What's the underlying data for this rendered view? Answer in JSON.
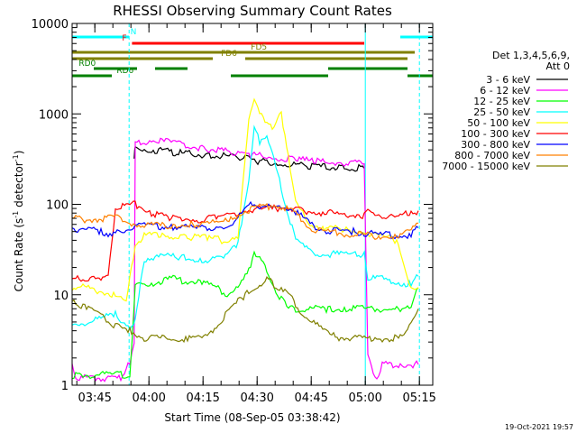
{
  "chart_data": {
    "type": "line",
    "title": "RHESSI Observing Summary Count Rates",
    "xlabel": "Start Time (08-Sep-05 03:38:42)",
    "ylabel_main": "Count Rate (s",
    "ylabel_sup1": "-1",
    "ylabel_mid": " detector",
    "ylabel_sup2": "-1",
    "ylabel_end": ")",
    "yscale": "log",
    "ylim": [
      1,
      10000
    ],
    "xlim_minutes": [
      0,
      100
    ],
    "x_ticks": [
      {
        "label": "03:45",
        "t": 6.3
      },
      {
        "label": "04:00",
        "t": 21.3
      },
      {
        "label": "04:15",
        "t": 36.3
      },
      {
        "label": "04:30",
        "t": 51.3
      },
      {
        "label": "04:45",
        "t": 66.3
      },
      {
        "label": "05:00",
        "t": 81.3
      },
      {
        "label": "05:15",
        "t": 96.3
      }
    ],
    "y_ticks": [
      {
        "label": "1",
        "v": 1
      },
      {
        "label": "10",
        "v": 10
      },
      {
        "label": "100",
        "v": 100
      },
      {
        "label": "1000",
        "v": 1000
      },
      {
        "label": "10000",
        "v": 10000
      }
    ],
    "legend_header_line1": "Det 1,3,4,5,6,9,",
    "legend_header_line2": "Att 0",
    "series": [
      {
        "name": "3 - 6 keV",
        "color": "#000000",
        "points": [
          [
            17.2,
            320
          ],
          [
            17.5,
            420
          ],
          [
            22,
            400
          ],
          [
            30,
            370
          ],
          [
            38,
            350
          ],
          [
            46,
            330
          ],
          [
            52,
            300
          ],
          [
            58,
            280
          ],
          [
            66,
            265
          ],
          [
            74,
            255
          ],
          [
            81,
            250
          ]
        ]
      },
      {
        "name": "6 - 12 keV",
        "color": "#ff00ff",
        "points": [
          [
            0,
            1.7
          ],
          [
            1,
            1.2
          ],
          [
            14,
            1.2
          ],
          [
            16,
            1.8
          ],
          [
            17.2,
            3
          ],
          [
            17.5,
            480
          ],
          [
            22,
            510
          ],
          [
            28,
            480
          ],
          [
            36,
            420
          ],
          [
            44,
            380
          ],
          [
            50,
            350
          ],
          [
            56,
            330
          ],
          [
            62,
            310
          ],
          [
            68,
            300
          ],
          [
            74,
            290
          ],
          [
            81,
            280
          ],
          [
            82,
            2
          ],
          [
            84.5,
            1.2
          ],
          [
            86,
            1.7
          ],
          [
            91,
            1.7
          ],
          [
            96,
            1.7
          ]
        ]
      },
      {
        "name": "12 - 25 keV",
        "color": "#00ff00",
        "points": [
          [
            0,
            1.3
          ],
          [
            1,
            1.3
          ],
          [
            5,
            1.3
          ],
          [
            10,
            1.3
          ],
          [
            13,
            1.3
          ],
          [
            16,
            1.3
          ],
          [
            17.5,
            12
          ],
          [
            20,
            13
          ],
          [
            24,
            14
          ],
          [
            28,
            15
          ],
          [
            32,
            14
          ],
          [
            36,
            14
          ],
          [
            40,
            12
          ],
          [
            43,
            10
          ],
          [
            46,
            12
          ],
          [
            49,
            18
          ],
          [
            50.5,
            30
          ],
          [
            52,
            26
          ],
          [
            54,
            18
          ],
          [
            57,
            10
          ],
          [
            60,
            7
          ],
          [
            63,
            7
          ],
          [
            67,
            7
          ],
          [
            71,
            7
          ],
          [
            76,
            7
          ],
          [
            81,
            7
          ],
          [
            86,
            7
          ],
          [
            91,
            7
          ],
          [
            94,
            7
          ],
          [
            96,
            12
          ]
        ]
      },
      {
        "name": "25 - 50 keV",
        "color": "#00ffff",
        "points": [
          [
            0,
            4.5
          ],
          [
            4,
            5
          ],
          [
            8,
            5.5
          ],
          [
            12,
            6
          ],
          [
            16,
            4.5
          ],
          [
            17.5,
            5
          ],
          [
            20,
            25
          ],
          [
            24,
            27
          ],
          [
            30,
            26
          ],
          [
            36,
            24
          ],
          [
            42,
            25
          ],
          [
            46,
            36
          ],
          [
            49,
            200
          ],
          [
            50.5,
            690
          ],
          [
            52,
            500
          ],
          [
            54,
            600
          ],
          [
            56,
            300
          ],
          [
            58,
            150
          ],
          [
            62,
            40
          ],
          [
            66,
            30
          ],
          [
            70,
            28
          ],
          [
            76,
            28
          ],
          [
            81,
            28
          ],
          [
            82,
            15
          ],
          [
            86,
            15
          ],
          [
            90,
            14
          ],
          [
            94,
            13
          ],
          [
            96,
            16
          ]
        ]
      },
      {
        "name": "50 - 100 keV",
        "color": "#ffff00",
        "points": [
          [
            0,
            12
          ],
          [
            4,
            12
          ],
          [
            8,
            11
          ],
          [
            12,
            10
          ],
          [
            15,
            8
          ],
          [
            17.5,
            36
          ],
          [
            20,
            45
          ],
          [
            25,
            46
          ],
          [
            32,
            44
          ],
          [
            38,
            42
          ],
          [
            42,
            40
          ],
          [
            46,
            45
          ],
          [
            48,
            300
          ],
          [
            49,
            900
          ],
          [
            50.5,
            1500
          ],
          [
            52,
            1000
          ],
          [
            54,
            850
          ],
          [
            56,
            700
          ],
          [
            58,
            1000
          ],
          [
            60,
            350
          ],
          [
            62,
            100
          ],
          [
            66,
            60
          ],
          [
            70,
            55
          ],
          [
            76,
            52
          ],
          [
            81,
            50
          ],
          [
            86,
            43
          ],
          [
            90,
            40
          ],
          [
            94,
            12
          ],
          [
            96,
            12
          ]
        ]
      },
      {
        "name": "100 - 300 keV",
        "color": "#ff0000",
        "points": [
          [
            0,
            15
          ],
          [
            2,
            15
          ],
          [
            8,
            15
          ],
          [
            10,
            15
          ],
          [
            12,
            90
          ],
          [
            15,
            95
          ],
          [
            17.5,
            100
          ],
          [
            22,
            80
          ],
          [
            28,
            70
          ],
          [
            34,
            68
          ],
          [
            40,
            70
          ],
          [
            44,
            75
          ],
          [
            48,
            85
          ],
          [
            52,
            88
          ],
          [
            56,
            90
          ],
          [
            60,
            92
          ],
          [
            62,
            86
          ],
          [
            66,
            84
          ],
          [
            70,
            80
          ],
          [
            74,
            78
          ],
          [
            78,
            78
          ],
          [
            81,
            75
          ],
          [
            82,
            85
          ],
          [
            86,
            75
          ],
          [
            90,
            72
          ],
          [
            94,
            80
          ],
          [
            96,
            85
          ]
        ]
      },
      {
        "name": "300 - 800 keV",
        "color": "#0000ff",
        "points": [
          [
            0,
            55
          ],
          [
            4,
            52
          ],
          [
            8,
            50
          ],
          [
            10,
            48
          ],
          [
            12,
            48
          ],
          [
            14,
            50
          ],
          [
            17.5,
            60
          ],
          [
            22,
            58
          ],
          [
            28,
            56
          ],
          [
            34,
            54
          ],
          [
            40,
            55
          ],
          [
            44,
            60
          ],
          [
            48,
            85
          ],
          [
            50,
            105
          ],
          [
            52,
            95
          ],
          [
            56,
            90
          ],
          [
            60,
            92
          ],
          [
            62,
            82
          ],
          [
            66,
            60
          ],
          [
            70,
            52
          ],
          [
            74,
            50
          ],
          [
            78,
            50
          ],
          [
            81,
            48
          ],
          [
            86,
            46
          ],
          [
            90,
            45
          ],
          [
            94,
            45
          ],
          [
            96,
            55
          ]
        ]
      },
      {
        "name": "800 - 7000 keV",
        "color": "#ff8000",
        "points": [
          [
            0,
            70
          ],
          [
            4,
            68
          ],
          [
            8,
            70
          ],
          [
            12,
            72
          ],
          [
            17.5,
            60
          ],
          [
            22,
            58
          ],
          [
            28,
            58
          ],
          [
            34,
            60
          ],
          [
            40,
            62
          ],
          [
            44,
            68
          ],
          [
            48,
            85
          ],
          [
            52,
            92
          ],
          [
            56,
            98
          ],
          [
            60,
            92
          ],
          [
            62,
            80
          ],
          [
            66,
            55
          ],
          [
            70,
            50
          ],
          [
            74,
            48
          ],
          [
            78,
            46
          ],
          [
            81,
            46
          ],
          [
            86,
            44
          ],
          [
            90,
            44
          ],
          [
            94,
            50
          ],
          [
            96,
            62
          ]
        ]
      },
      {
        "name": "7000 - 15000 keV",
        "color": "#808000",
        "points": [
          [
            0,
            9
          ],
          [
            4,
            7
          ],
          [
            8,
            6
          ],
          [
            10,
            5
          ],
          [
            12,
            4.5
          ],
          [
            16,
            4
          ],
          [
            20,
            3.3
          ],
          [
            24,
            3.3
          ],
          [
            28,
            3.3
          ],
          [
            32,
            3.3
          ],
          [
            36,
            3.3
          ],
          [
            40,
            4.5
          ],
          [
            44,
            7
          ],
          [
            48,
            10
          ],
          [
            52,
            13
          ],
          [
            54,
            15
          ],
          [
            56,
            13
          ],
          [
            58,
            12
          ],
          [
            60,
            10
          ],
          [
            64,
            6
          ],
          [
            68,
            4.5
          ],
          [
            72,
            3.5
          ],
          [
            76,
            3.3
          ],
          [
            80,
            3.3
          ],
          [
            84,
            3.3
          ],
          [
            88,
            3.3
          ],
          [
            92,
            3.3
          ],
          [
            94,
            5
          ],
          [
            96,
            7
          ]
        ]
      }
    ],
    "flags": [
      {
        "label": "N",
        "color": "#00ffff",
        "segments": [
          [
            0,
            15.8
          ],
          [
            91,
            100
          ]
        ],
        "label_t": 17.0,
        "row": 0
      },
      {
        "label": "F",
        "color": "#ff0000",
        "segments": [
          [
            16.6,
            81
          ]
        ],
        "label_t": 14.5,
        "row": 1
      },
      {
        "label": "FD5",
        "color": "#808000",
        "segments": [
          [
            0,
            95
          ]
        ],
        "label_t": 51.8,
        "row": 2
      },
      {
        "label": "FD6",
        "color": "#808000",
        "segments": [
          [
            0,
            39
          ],
          [
            48,
            93
          ]
        ],
        "label_t": 43.5,
        "row": 3
      },
      {
        "label": "RD0",
        "color": "#008000",
        "segments": [
          [
            6,
            18
          ],
          [
            23,
            32
          ],
          [
            71,
            93
          ]
        ],
        "label_t": 4.2,
        "row": 4
      },
      {
        "label": "RD6",
        "color": "#008000",
        "segments": [
          [
            0,
            11
          ],
          [
            44,
            71
          ],
          [
            93,
            100
          ]
        ],
        "label_t": 14.7,
        "row": 5
      }
    ],
    "vertical_markers": [
      {
        "t": 0,
        "color": "#00ffff"
      },
      {
        "t": 15.8,
        "color": "#00ffff"
      },
      {
        "t": 81.3,
        "color": "#00ffff"
      },
      {
        "t": 96.3,
        "color": "#00ffff"
      }
    ]
  },
  "footer": {
    "date": "19-Oct-2021 19:57"
  }
}
